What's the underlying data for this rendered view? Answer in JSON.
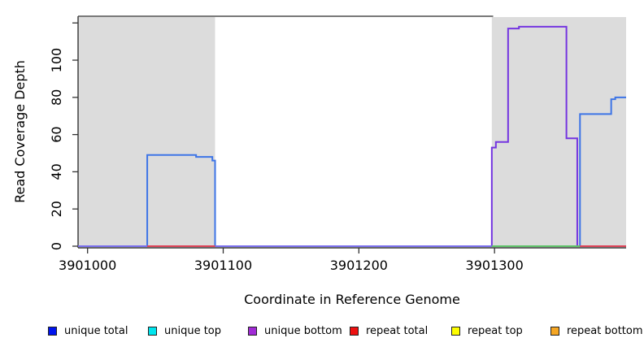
{
  "figure": {
    "background": "#ffffff"
  },
  "chart_data": {
    "type": "line",
    "subtype": "step-coverage",
    "title": "",
    "xlabel": "Coordinate in Reference Genome",
    "ylabel": "Read Coverage Depth",
    "xlim": [
      3900993,
      3901397
    ],
    "ylim": [
      0,
      123.6
    ],
    "grid": false,
    "x_ticks": [
      {
        "value": 3901000,
        "label": "3901000"
      },
      {
        "value": 3901100,
        "label": "3901100"
      },
      {
        "value": 3901200,
        "label": "3901200"
      },
      {
        "value": 3901300,
        "label": "3901300"
      }
    ],
    "y_ticks": [
      {
        "value": 0,
        "label": "0"
      },
      {
        "value": 20,
        "label": "20"
      },
      {
        "value": 40,
        "label": "40"
      },
      {
        "value": 60,
        "label": "60"
      },
      {
        "value": 80,
        "label": "80"
      },
      {
        "value": 100,
        "label": "100"
      },
      {
        "value": 120,
        "label": ""
      }
    ],
    "repeat_regions": [
      {
        "start": 3900993,
        "end": 3901094
      },
      {
        "start": 3901298,
        "end": 3901397
      }
    ],
    "series": [
      {
        "name": "unique total",
        "color": "#3d74e6",
        "steps": [
          [
            3900993,
            0
          ],
          [
            3901044,
            49
          ],
          [
            3901080,
            48
          ],
          [
            3901092,
            46
          ],
          [
            3901094,
            0
          ],
          [
            3901363,
            71
          ],
          [
            3901386,
            79
          ],
          [
            3901389,
            80
          ]
        ]
      },
      {
        "name": "unique bottom",
        "color": "#7435e0",
        "steps": [
          [
            3900993,
            0
          ],
          [
            3901298,
            53
          ],
          [
            3901301,
            56
          ],
          [
            3901310,
            117
          ],
          [
            3901318,
            118
          ],
          [
            3901353,
            58
          ],
          [
            3901361,
            0
          ]
        ]
      }
    ],
    "baseline_segments": [
      {
        "start": 3900993,
        "end": 3901044,
        "color": "#7a70ee"
      },
      {
        "start": 3901044,
        "end": 3901094,
        "color": "#de4358"
      },
      {
        "start": 3901094,
        "end": 3901298,
        "color": "#7a70ee"
      },
      {
        "start": 3901298,
        "end": 3901363,
        "color": "#5fc46a"
      },
      {
        "start": 3901363,
        "end": 3901397,
        "color": "#de4358"
      }
    ],
    "top_border": {
      "x_start": 3900993,
      "x_end": 3901299,
      "color": "#4d4d4d"
    },
    "legend": {
      "position": "bottom",
      "entries": [
        {
          "label": "unique total",
          "color": "#0014ee"
        },
        {
          "label": "unique top",
          "color": "#00e5ee"
        },
        {
          "label": "unique bottom",
          "color": "#a12bd6"
        },
        {
          "label": "repeat total",
          "color": "#ee1111"
        },
        {
          "label": "repeat top",
          "color": "#fdfd00"
        },
        {
          "label": "repeat bottom",
          "color": "#f5a623"
        }
      ]
    },
    "colors": {
      "repeat_region_fill": "#dcdcdc",
      "axis": "#333333"
    }
  }
}
